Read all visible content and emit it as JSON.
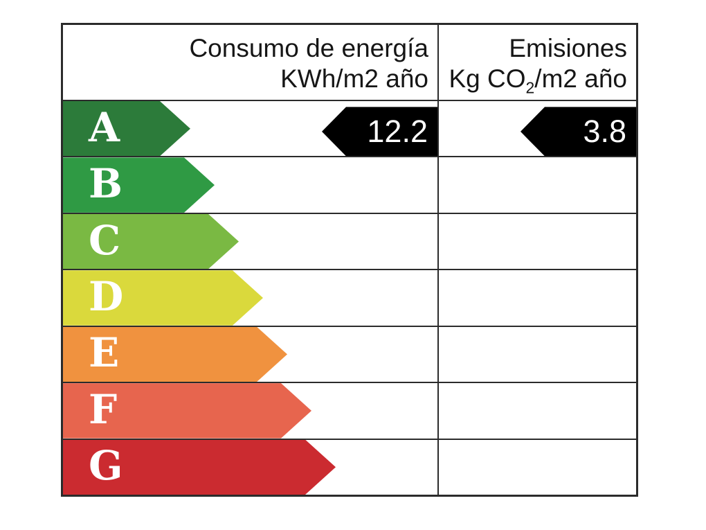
{
  "header": {
    "consumo_title": "Consumo de energía",
    "consumo_units": "KWh/m2 año",
    "emisiones_title": "Emisiones",
    "emisiones_units_prefix": "Kg CO",
    "emisiones_units_sub": "2",
    "emisiones_units_suffix": "/m2 año"
  },
  "rows": [
    {
      "letter": "A",
      "color": "#2c7b3a",
      "arrow_width": 184
    },
    {
      "letter": "B",
      "color": "#2f9a44",
      "arrow_width": 219
    },
    {
      "letter": "C",
      "color": "#7ab943",
      "arrow_width": 254
    },
    {
      "letter": "D",
      "color": "#dad93c",
      "arrow_width": 289
    },
    {
      "letter": "E",
      "color": "#f0923f",
      "arrow_width": 324
    },
    {
      "letter": "F",
      "color": "#e7654e",
      "arrow_width": 359
    },
    {
      "letter": "G",
      "color": "#cb2b30",
      "arrow_width": 394
    }
  ],
  "ratings": {
    "consumo": {
      "rating_letter": "A",
      "value": "12.2"
    },
    "emisiones": {
      "rating_letter": "A",
      "value": "3.8"
    }
  },
  "colors": {
    "tag_background": "#000000",
    "tag_text": "#ffffff",
    "grid_border": "#2b2b2b"
  },
  "chart_data": {
    "type": "bar",
    "orientation": "horizontal",
    "title": "Energy efficiency certificate scale",
    "categories": [
      "A",
      "B",
      "C",
      "D",
      "E",
      "F",
      "G"
    ],
    "bar_colors": [
      "#2c7b3a",
      "#2f9a44",
      "#7ab943",
      "#dad93c",
      "#f0923f",
      "#e7654e",
      "#cb2b30"
    ],
    "bar_relative_lengths": [
      1,
      1.19,
      1.38,
      1.57,
      1.76,
      1.95,
      2.14
    ],
    "columns": [
      {
        "title": "Consumo de energía KWh/m2 año",
        "value": 12.2,
        "rating": "A"
      },
      {
        "title": "Emisiones Kg CO2/m2 año",
        "value": 3.8,
        "rating": "A"
      }
    ],
    "legend_position": "none",
    "grid": true
  }
}
